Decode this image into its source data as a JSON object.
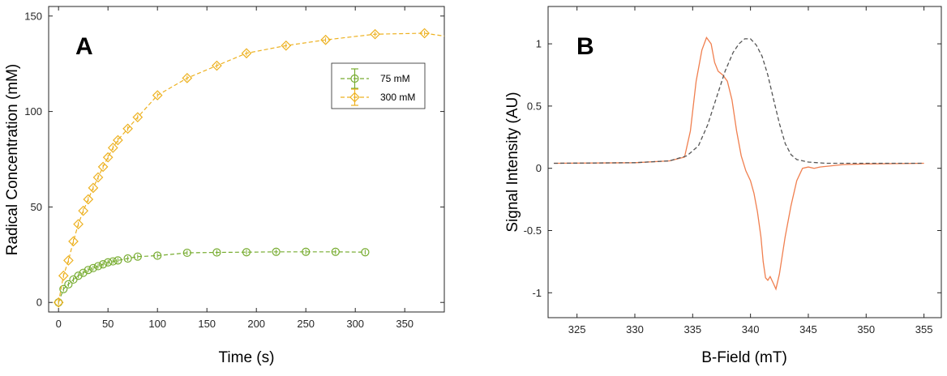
{
  "colors": {
    "green": "#77AC30",
    "yellow": "#EDB120",
    "orange": "#F07F4F",
    "gray": "#555555"
  },
  "chart_data": [
    {
      "type": "scatter",
      "panel_label": "A",
      "xlabel": "Time (s)",
      "ylabel": "Radical Concentration (mM)",
      "xlim": [
        -10,
        390
      ],
      "ylim": [
        -5,
        155
      ],
      "xticks": [
        0,
        50,
        100,
        150,
        200,
        250,
        300,
        350
      ],
      "yticks": [
        0,
        50,
        100,
        150
      ],
      "legend_position": "upper-right",
      "series": [
        {
          "name": "75 mM",
          "marker": "circle",
          "line": "dashed",
          "color": "#77AC30",
          "x": [
            0,
            5,
            10,
            15,
            20,
            25,
            30,
            35,
            40,
            45,
            50,
            55,
            60,
            70,
            80,
            100,
            130,
            160,
            190,
            220,
            250,
            280,
            310
          ],
          "y": [
            0,
            7,
            9.5,
            12,
            14,
            15.5,
            17,
            18,
            19,
            20,
            21,
            21.5,
            22,
            23,
            24,
            24.5,
            26,
            26.2,
            26.3,
            26.5,
            26.5,
            26.5,
            26.3
          ]
        },
        {
          "name": "300 mM",
          "marker": "diamond",
          "line": "dashed",
          "color": "#EDB120",
          "x": [
            0,
            5,
            10,
            15,
            20,
            25,
            30,
            35,
            40,
            45,
            50,
            55,
            60,
            70,
            80,
            100,
            130,
            160,
            190,
            230,
            270,
            320,
            370
          ],
          "y": [
            0,
            14,
            22,
            32,
            41,
            48,
            54,
            60,
            65.5,
            71,
            76,
            81,
            85,
            91,
            97,
            108.5,
            117.5,
            124,
            130.5,
            134.5,
            137.5,
            140.5,
            141
          ]
        }
      ]
    },
    {
      "type": "line",
      "panel_label": "B",
      "xlabel": "B-Field (mT)",
      "ylabel": "Signal Intensity (AU)",
      "xlim": [
        322.5,
        356.5
      ],
      "ylim": [
        -1.2,
        1.3
      ],
      "xticks": [
        325,
        330,
        335,
        340,
        345,
        350,
        355
      ],
      "yticks": [
        -1,
        -0.5,
        0,
        0.5,
        1
      ],
      "ytick_labels": [
        "-1",
        "-0.5",
        "0",
        "0.5",
        "1"
      ],
      "series": [
        {
          "style": "solid",
          "color": "#F07F4F",
          "x": [
            323,
            330,
            333,
            334.3,
            334.8,
            335.3,
            335.8,
            336.2,
            336.6,
            336.9,
            337.2,
            337.6,
            338.0,
            338.4,
            338.8,
            339.2,
            339.6,
            340.0,
            340.3,
            340.6,
            340.9,
            341.1,
            341.3,
            341.5,
            341.7,
            342.0,
            342.2,
            342.5,
            343.0,
            343.5,
            344.0,
            344.5,
            345.0,
            345.5,
            346.0,
            347.0,
            348.0,
            350.0,
            355.0
          ],
          "y": [
            0.04,
            0.045,
            0.06,
            0.09,
            0.3,
            0.7,
            0.95,
            1.05,
            1.0,
            0.85,
            0.78,
            0.75,
            0.7,
            0.55,
            0.3,
            0.1,
            -0.02,
            -0.1,
            -0.2,
            -0.35,
            -0.55,
            -0.75,
            -0.88,
            -0.9,
            -0.87,
            -0.93,
            -0.97,
            -0.85,
            -0.55,
            -0.3,
            -0.1,
            0.0,
            0.01,
            0.0,
            0.01,
            0.02,
            0.03,
            0.035,
            0.04
          ]
        },
        {
          "style": "dashed",
          "color": "#555555",
          "x": [
            323,
            330,
            333,
            334.5,
            335.5,
            336.3,
            337.0,
            337.8,
            338.5,
            339.0,
            339.5,
            340.0,
            340.5,
            341.0,
            341.5,
            342.0,
            342.5,
            343.0,
            343.5,
            344.0,
            345.0,
            346.5,
            348.0,
            350.0,
            355.0
          ],
          "y": [
            0.04,
            0.045,
            0.06,
            0.1,
            0.18,
            0.35,
            0.55,
            0.78,
            0.93,
            1.0,
            1.04,
            1.04,
            0.99,
            0.9,
            0.75,
            0.55,
            0.36,
            0.2,
            0.11,
            0.07,
            0.05,
            0.04,
            0.04,
            0.04,
            0.04
          ]
        }
      ]
    }
  ]
}
